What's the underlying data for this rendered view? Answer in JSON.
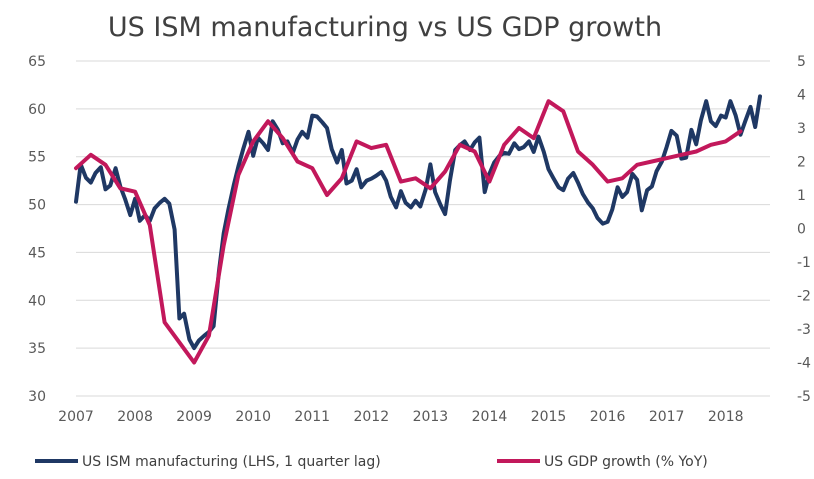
{
  "chart_data": {
    "type": "line",
    "title": "US ISM manufacturing vs US GDP growth",
    "x_ticks": [
      "2007",
      "2008",
      "2009",
      "2010",
      "2011",
      "2012",
      "2013",
      "2014",
      "2015",
      "2016",
      "2017",
      "2018"
    ],
    "xlim": [
      2007,
      2018.75
    ],
    "y_left": {
      "lim": [
        30,
        65
      ],
      "ticks": [
        "30",
        "35",
        "40",
        "45",
        "50",
        "55",
        "60",
        "65"
      ]
    },
    "y_right": {
      "lim": [
        -5,
        5
      ],
      "ticks": [
        "-5",
        "-4",
        "-3",
        "-2",
        "-1",
        "0",
        "1",
        "2",
        "3",
        "4",
        "5"
      ],
      "ticks_clipped": true
    },
    "grid": true,
    "legend_position": "bottom",
    "series": [
      {
        "name": "US ISM manufacturing (LHS, 1 quarter lag)",
        "axis": "left",
        "color": "#1f3864",
        "points": [
          [
            2007.0,
            50.3
          ],
          [
            2007.08,
            54.2
          ],
          [
            2007.17,
            52.8
          ],
          [
            2007.25,
            52.3
          ],
          [
            2007.33,
            53.3
          ],
          [
            2007.42,
            53.9
          ],
          [
            2007.5,
            51.6
          ],
          [
            2007.58,
            52.0
          ],
          [
            2007.67,
            53.8
          ],
          [
            2007.75,
            51.9
          ],
          [
            2007.83,
            50.6
          ],
          [
            2007.92,
            48.9
          ],
          [
            2008.0,
            50.6
          ],
          [
            2008.08,
            48.3
          ],
          [
            2008.17,
            48.9
          ],
          [
            2008.25,
            48.3
          ],
          [
            2008.33,
            49.6
          ],
          [
            2008.42,
            50.2
          ],
          [
            2008.5,
            50.6
          ],
          [
            2008.58,
            50.1
          ],
          [
            2008.67,
            47.4
          ],
          [
            2008.75,
            38.1
          ],
          [
            2008.83,
            38.6
          ],
          [
            2008.92,
            35.9
          ],
          [
            2009.0,
            35.0
          ],
          [
            2009.08,
            35.8
          ],
          [
            2009.17,
            36.3
          ],
          [
            2009.25,
            36.7
          ],
          [
            2009.33,
            37.3
          ],
          [
            2009.42,
            43.0
          ],
          [
            2009.5,
            47.0
          ],
          [
            2009.58,
            49.5
          ],
          [
            2009.67,
            52.0
          ],
          [
            2009.75,
            54.0
          ],
          [
            2009.83,
            55.8
          ],
          [
            2009.92,
            57.6
          ],
          [
            2010.0,
            55.1
          ],
          [
            2010.08,
            57.0
          ],
          [
            2010.17,
            56.4
          ],
          [
            2010.25,
            55.7
          ],
          [
            2010.33,
            58.7
          ],
          [
            2010.42,
            57.8
          ],
          [
            2010.5,
            56.4
          ],
          [
            2010.58,
            56.6
          ],
          [
            2010.67,
            55.4
          ],
          [
            2010.75,
            56.8
          ],
          [
            2010.83,
            57.6
          ],
          [
            2010.92,
            57.0
          ],
          [
            2011.0,
            59.3
          ],
          [
            2011.08,
            59.2
          ],
          [
            2011.17,
            58.6
          ],
          [
            2011.25,
            58.0
          ],
          [
            2011.33,
            55.8
          ],
          [
            2011.42,
            54.4
          ],
          [
            2011.5,
            55.7
          ],
          [
            2011.58,
            52.2
          ],
          [
            2011.67,
            52.5
          ],
          [
            2011.75,
            53.7
          ],
          [
            2011.83,
            51.8
          ],
          [
            2011.92,
            52.5
          ],
          [
            2012.0,
            52.7
          ],
          [
            2012.08,
            53.0
          ],
          [
            2012.17,
            53.4
          ],
          [
            2012.25,
            52.5
          ],
          [
            2012.33,
            50.8
          ],
          [
            2012.42,
            49.7
          ],
          [
            2012.5,
            51.4
          ],
          [
            2012.58,
            50.2
          ],
          [
            2012.67,
            49.7
          ],
          [
            2012.75,
            50.4
          ],
          [
            2012.83,
            49.8
          ],
          [
            2012.92,
            51.6
          ],
          [
            2013.0,
            54.2
          ],
          [
            2013.08,
            51.3
          ],
          [
            2013.17,
            50.0
          ],
          [
            2013.25,
            49.0
          ],
          [
            2013.33,
            52.5
          ],
          [
            2013.42,
            55.7
          ],
          [
            2013.5,
            56.2
          ],
          [
            2013.58,
            56.6
          ],
          [
            2013.67,
            55.7
          ],
          [
            2013.75,
            56.5
          ],
          [
            2013.83,
            57.0
          ],
          [
            2013.92,
            51.3
          ],
          [
            2014.0,
            53.2
          ],
          [
            2014.08,
            54.4
          ],
          [
            2014.17,
            55.1
          ],
          [
            2014.25,
            55.4
          ],
          [
            2014.33,
            55.3
          ],
          [
            2014.42,
            56.4
          ],
          [
            2014.5,
            55.8
          ],
          [
            2014.58,
            56.0
          ],
          [
            2014.67,
            56.6
          ],
          [
            2014.75,
            55.5
          ],
          [
            2014.83,
            57.1
          ],
          [
            2014.92,
            55.5
          ],
          [
            2015.0,
            53.7
          ],
          [
            2015.08,
            52.8
          ],
          [
            2015.17,
            51.8
          ],
          [
            2015.25,
            51.5
          ],
          [
            2015.33,
            52.7
          ],
          [
            2015.42,
            53.3
          ],
          [
            2015.5,
            52.3
          ],
          [
            2015.58,
            51.1
          ],
          [
            2015.67,
            50.2
          ],
          [
            2015.75,
            49.6
          ],
          [
            2015.83,
            48.6
          ],
          [
            2015.92,
            48.0
          ],
          [
            2016.0,
            48.2
          ],
          [
            2016.08,
            49.5
          ],
          [
            2016.17,
            51.8
          ],
          [
            2016.25,
            50.8
          ],
          [
            2016.33,
            51.3
          ],
          [
            2016.42,
            53.2
          ],
          [
            2016.5,
            52.6
          ],
          [
            2016.58,
            49.4
          ],
          [
            2016.67,
            51.5
          ],
          [
            2016.75,
            51.9
          ],
          [
            2016.83,
            53.5
          ],
          [
            2016.92,
            54.5
          ],
          [
            2017.0,
            56.0
          ],
          [
            2017.08,
            57.7
          ],
          [
            2017.17,
            57.2
          ],
          [
            2017.25,
            54.8
          ],
          [
            2017.33,
            54.9
          ],
          [
            2017.42,
            57.8
          ],
          [
            2017.5,
            56.3
          ],
          [
            2017.58,
            58.8
          ],
          [
            2017.67,
            60.8
          ],
          [
            2017.75,
            58.7
          ],
          [
            2017.83,
            58.2
          ],
          [
            2017.92,
            59.3
          ],
          [
            2018.0,
            59.1
          ],
          [
            2018.08,
            60.8
          ],
          [
            2018.17,
            59.3
          ],
          [
            2018.25,
            57.3
          ],
          [
            2018.33,
            58.7
          ],
          [
            2018.42,
            60.2
          ],
          [
            2018.5,
            58.1
          ],
          [
            2018.58,
            61.3
          ]
        ]
      },
      {
        "name": "US GDP growth (% YoY)",
        "axis": "right",
        "color": "#c2185b",
        "points": [
          [
            2007.0,
            1.8
          ],
          [
            2007.25,
            2.2
          ],
          [
            2007.5,
            1.9
          ],
          [
            2007.75,
            1.2
          ],
          [
            2008.0,
            1.1
          ],
          [
            2008.25,
            0.1
          ],
          [
            2008.5,
            -2.8
          ],
          [
            2008.75,
            -3.4
          ],
          [
            2009.0,
            -4.0
          ],
          [
            2009.25,
            -3.2
          ],
          [
            2009.5,
            -0.5
          ],
          [
            2009.75,
            1.6
          ],
          [
            2010.0,
            2.6
          ],
          [
            2010.25,
            3.2
          ],
          [
            2010.5,
            2.7
          ],
          [
            2010.75,
            2.0
          ],
          [
            2011.0,
            1.8
          ],
          [
            2011.25,
            1.0
          ],
          [
            2011.5,
            1.5
          ],
          [
            2011.75,
            2.6
          ],
          [
            2012.0,
            2.4
          ],
          [
            2012.25,
            2.5
          ],
          [
            2012.5,
            1.4
          ],
          [
            2012.75,
            1.5
          ],
          [
            2013.0,
            1.2
          ],
          [
            2013.25,
            1.7
          ],
          [
            2013.5,
            2.5
          ],
          [
            2013.75,
            2.3
          ],
          [
            2014.0,
            1.4
          ],
          [
            2014.25,
            2.5
          ],
          [
            2014.5,
            3.0
          ],
          [
            2014.75,
            2.7
          ],
          [
            2015.0,
            3.8
          ],
          [
            2015.25,
            3.5
          ],
          [
            2015.5,
            2.3
          ],
          [
            2015.75,
            1.9
          ],
          [
            2016.0,
            1.4
          ],
          [
            2016.25,
            1.5
          ],
          [
            2016.5,
            1.9
          ],
          [
            2016.75,
            2.0
          ],
          [
            2017.0,
            2.1
          ],
          [
            2017.25,
            2.2
          ],
          [
            2017.5,
            2.3
          ],
          [
            2017.75,
            2.5
          ],
          [
            2018.0,
            2.6
          ],
          [
            2018.25,
            2.9
          ]
        ]
      }
    ]
  }
}
